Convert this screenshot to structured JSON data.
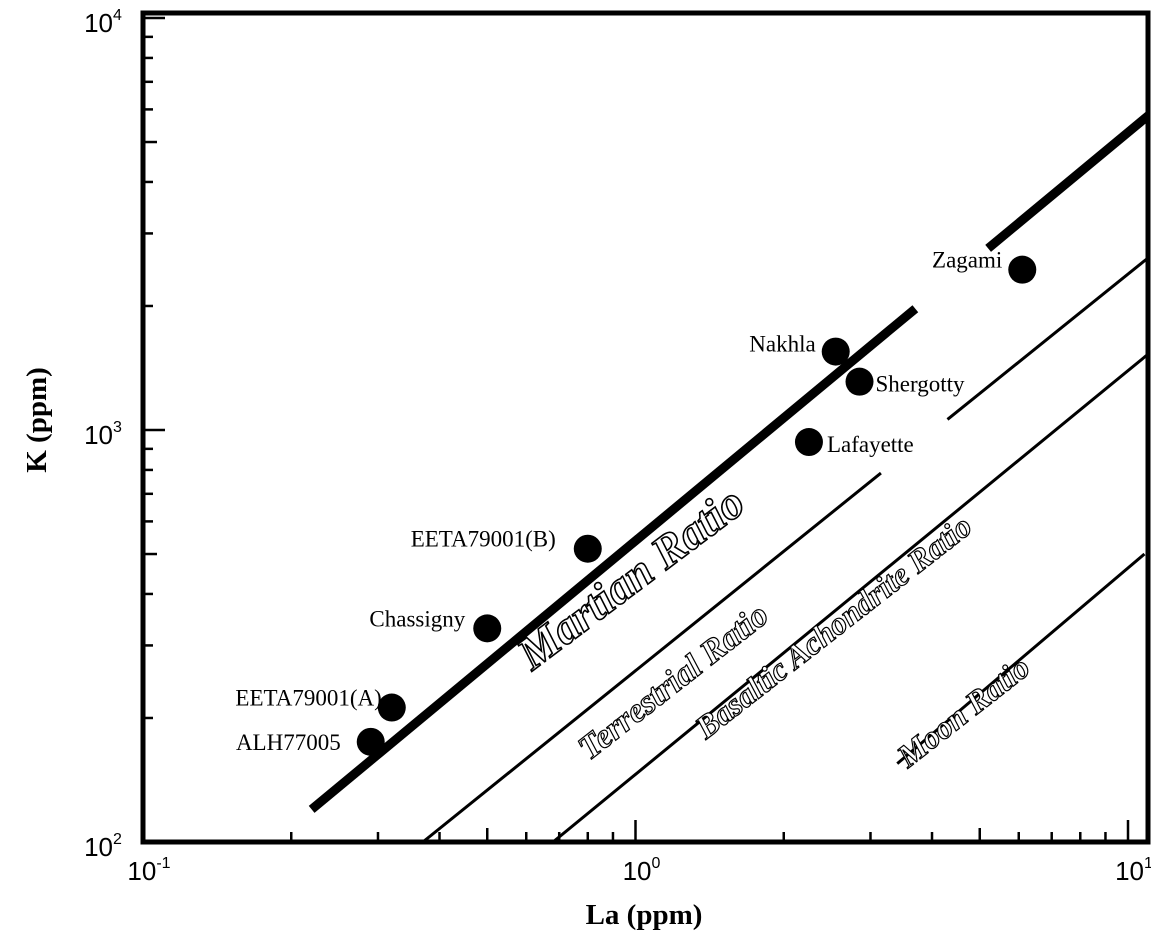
{
  "chart_data": {
    "type": "scatter",
    "xlabel": "La (ppm)",
    "ylabel": "K (ppm)",
    "x_scale": "log",
    "y_scale": "log",
    "xlim": [
      0.1,
      11
    ],
    "ylim": [
      100,
      10000
    ],
    "x_ticks": [
      {
        "value": 0.1,
        "base": "10",
        "exp": "-1"
      },
      {
        "value": 1,
        "base": "10",
        "exp": "0"
      },
      {
        "value": 10,
        "base": "10",
        "exp": "1"
      }
    ],
    "y_ticks": [
      {
        "value": 100,
        "base": "10",
        "exp": "2"
      },
      {
        "value": 1000,
        "base": "10",
        "exp": "3"
      },
      {
        "value": 10000,
        "base": "10",
        "exp": "4"
      }
    ],
    "grid": false,
    "points": [
      {
        "name": "ALH77005",
        "x": 0.29,
        "y": 175
      },
      {
        "name": "EETA79001(A)",
        "x": 0.32,
        "y": 212
      },
      {
        "name": "Chassigny",
        "x": 0.5,
        "y": 330
      },
      {
        "name": "EETA79001(B)",
        "x": 0.8,
        "y": 515
      },
      {
        "name": "Lafayette",
        "x": 2.25,
        "y": 935
      },
      {
        "name": "Nakhla",
        "x": 2.55,
        "y": 1550
      },
      {
        "name": "Shergotty",
        "x": 2.85,
        "y": 1310
      },
      {
        "name": "Zagami",
        "x": 6.1,
        "y": 2450
      }
    ],
    "ratio_lines": [
      {
        "name": "Martian Ratio",
        "x": [
          0.22,
          11
        ],
        "y": [
          120,
          5800
        ],
        "width": "thick",
        "gap_x": [
          3.7,
          5.2
        ]
      },
      {
        "name": "Terrestrial Ratio",
        "x": [
          0.37,
          11
        ],
        "y": [
          100,
          2620
        ],
        "width": "thin",
        "gap_x": [
          3.15,
          4.3
        ]
      },
      {
        "name": "Basaltic Achondrite Ratio",
        "x": [
          0.68,
          11
        ],
        "y": [
          100,
          1530
        ],
        "width": "thin"
      },
      {
        "name": "Moon Ratio",
        "x": [
          3.4,
          10.8
        ],
        "y": [
          155,
          500
        ],
        "width": "thin"
      }
    ]
  }
}
